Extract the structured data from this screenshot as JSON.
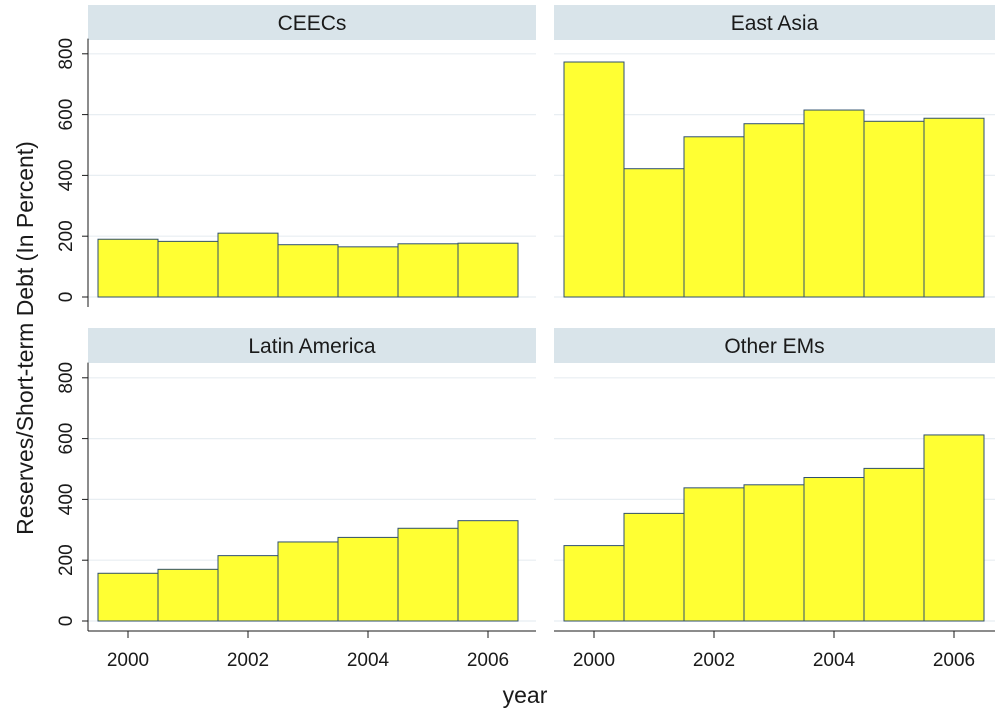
{
  "chart_data": {
    "type": "bar",
    "layout": "2x2 facets",
    "xlabel": "year",
    "ylabel": "Reserves/Short-term Debt (In Percent)",
    "ylim": [
      0,
      850
    ],
    "yticks": [
      0,
      200,
      400,
      600,
      800
    ],
    "xticks": [
      2000,
      2002,
      2004,
      2006
    ],
    "x": [
      2000,
      2001,
      2002,
      2003,
      2004,
      2005,
      2006
    ],
    "grid": true,
    "colors": {
      "bar_fill": "#ffff33",
      "bar_stroke": "#2f4f6f",
      "strip_background": "#d9e4ea",
      "gridline": "#e8eef2"
    },
    "panels": [
      {
        "title": "CEECs",
        "values": [
          190,
          183,
          210,
          172,
          165,
          175,
          177
        ]
      },
      {
        "title": "East Asia",
        "values": [
          773,
          422,
          527,
          570,
          615,
          578,
          588
        ]
      },
      {
        "title": "Latin America",
        "values": [
          157,
          170,
          215,
          260,
          275,
          305,
          330
        ]
      },
      {
        "title": "Other EMs",
        "values": [
          248,
          354,
          438,
          448,
          472,
          502,
          612
        ]
      }
    ]
  }
}
